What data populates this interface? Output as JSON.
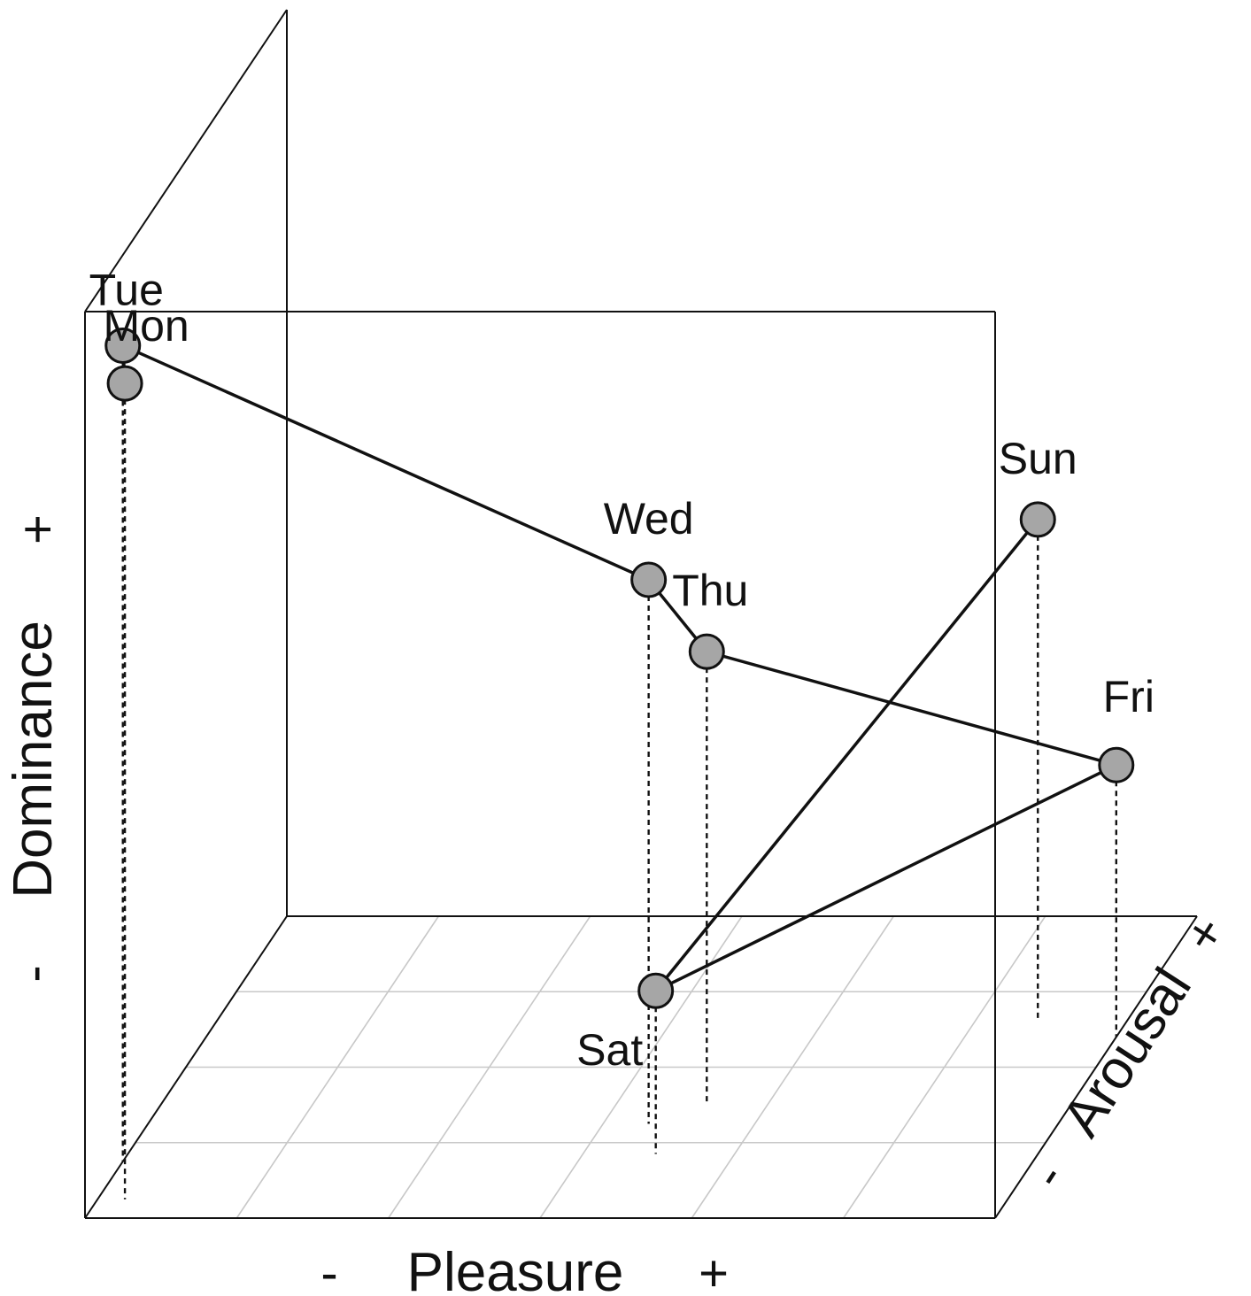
{
  "chart_data": {
    "type": "scatter",
    "projection": "3d",
    "axes": {
      "x": {
        "label": "Pleasure",
        "minus": "-",
        "plus": "+"
      },
      "y": {
        "label": "Arousal",
        "minus": "-",
        "plus": "+"
      },
      "z": {
        "label": "Dominance",
        "minus": "-",
        "plus": "+"
      }
    },
    "connected": true,
    "point_color": "#a6a6a6",
    "points": [
      {
        "label": "Mon",
        "x": 0.03,
        "y": 0.25,
        "z": 0.9
      },
      {
        "label": "Tue",
        "x": 0.0,
        "y": 0.75,
        "z": 0.9
      },
      {
        "label": "Wed",
        "x": 0.55,
        "y": 1.25,
        "z": 0.6
      },
      {
        "label": "Thu",
        "x": 0.6,
        "y": 1.5,
        "z": 0.5
      },
      {
        "label": "Fri",
        "x": 1.0,
        "y": 2.4,
        "z": 0.3
      },
      {
        "label": "Sat",
        "x": 0.58,
        "y": 0.85,
        "z": 0.18
      },
      {
        "label": "Sun",
        "x": 0.9,
        "y": 2.65,
        "z": 0.55
      }
    ],
    "sequence": [
      "Mon",
      "Tue",
      "Wed",
      "Thu",
      "Fri",
      "Sat",
      "Sun"
    ]
  }
}
